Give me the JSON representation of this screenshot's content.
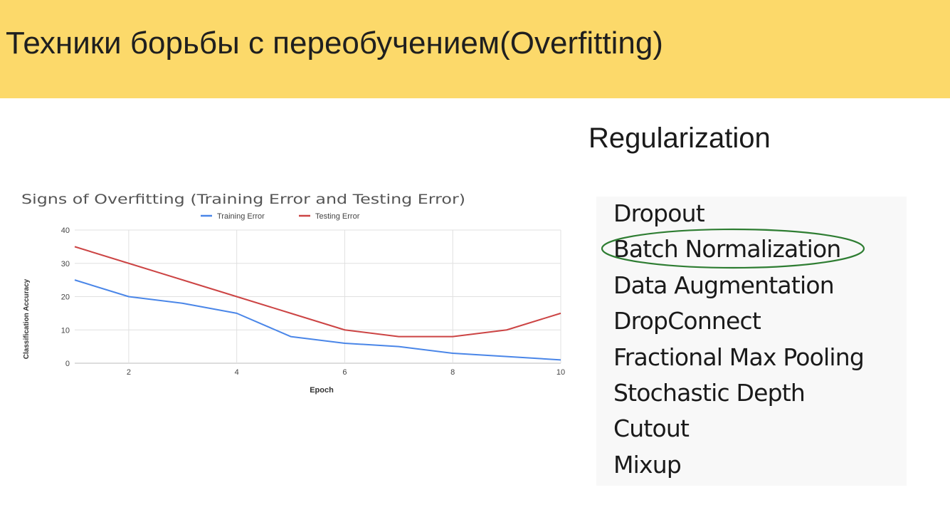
{
  "slide": {
    "title": "Техники борьбы с переобучением(Overfitting)",
    "colors": {
      "header_bg": "#fcd96a",
      "highlight": "#2e7d32"
    }
  },
  "regularization": {
    "heading": "Regularization",
    "items": [
      "Dropout",
      "Batch Normalization",
      "Data Augmentation",
      "DropConnect",
      "Fractional Max Pooling",
      "Stochastic Depth",
      "Cutout",
      "Mixup"
    ],
    "highlighted_item": "Batch Normalization"
  },
  "chart_data": {
    "type": "line",
    "title": "Signs of Overfitting (Training Error and Testing Error)",
    "xlabel": "Epoch",
    "ylabel": "Classification Accuracy",
    "x": [
      1,
      2,
      3,
      4,
      5,
      6,
      7,
      8,
      9,
      10
    ],
    "xlim": [
      1,
      10
    ],
    "ylim": [
      0,
      40
    ],
    "xticks": [
      2,
      4,
      6,
      8,
      10
    ],
    "yticks": [
      0,
      10,
      20,
      30,
      40
    ],
    "grid": true,
    "legend": "top-center",
    "series": [
      {
        "name": "Training Error",
        "color": "#4a86e8",
        "values": [
          25,
          20,
          18,
          15,
          8,
          6,
          5,
          3,
          2,
          1
        ]
      },
      {
        "name": "Testing Error",
        "color": "#cc4444",
        "values": [
          35,
          30,
          25,
          20,
          15,
          10,
          8,
          8,
          10,
          15
        ]
      }
    ]
  }
}
